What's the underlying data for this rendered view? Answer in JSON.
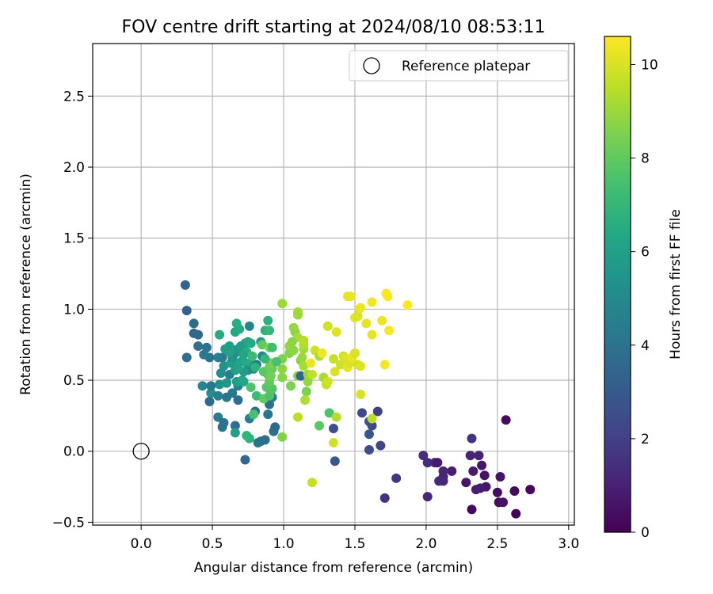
{
  "chart_data": {
    "type": "scatter",
    "title": "FOV centre drift starting at 2024/08/10 08:53:11",
    "xlabel": "Angular distance from reference (arcmin)",
    "ylabel": "Rotation from reference (arcmin)",
    "xlim": [
      -0.34,
      3.04
    ],
    "ylim": [
      -0.52,
      2.87
    ],
    "xticks": [
      "0.0",
      "0.5",
      "1.0",
      "1.5",
      "2.0",
      "2.5",
      "3.0"
    ],
    "yticks": [
      "−0.5",
      "0.0",
      "0.5",
      "1.0",
      "1.5",
      "2.0",
      "2.5"
    ],
    "grid": true,
    "legend": {
      "placement": "top-right",
      "entries": [
        "Reference platepar"
      ]
    },
    "colorbar": {
      "label": "Hours from first FF file",
      "colormap": "viridis",
      "range": [
        0,
        10.6
      ],
      "ticks": [
        "0",
        "2",
        "4",
        "6",
        "8",
        "10"
      ]
    },
    "reference": {
      "x": 0.0,
      "y": 0.0,
      "marker": "open-circle"
    },
    "points": [
      [
        2.56,
        0.22,
        0.3
      ],
      [
        2.32,
        0.09,
        1.6
      ],
      [
        2.63,
        -0.44,
        0.1
      ],
      [
        2.32,
        -0.41,
        0.3
      ],
      [
        2.73,
        -0.27,
        0.2
      ],
      [
        2.62,
        -0.28,
        0.3
      ],
      [
        2.5,
        -0.29,
        0.4
      ],
      [
        2.51,
        -0.36,
        0.3
      ],
      [
        2.54,
        -0.36,
        0.5
      ],
      [
        2.52,
        -0.18,
        0.6
      ],
      [
        2.42,
        -0.25,
        0.7
      ],
      [
        2.38,
        -0.26,
        0.8
      ],
      [
        2.35,
        -0.27,
        0.9
      ],
      [
        2.41,
        -0.17,
        0.5
      ],
      [
        2.39,
        -0.1,
        0.7
      ],
      [
        2.33,
        -0.14,
        0.8
      ],
      [
        2.37,
        -0.03,
        1.0
      ],
      [
        2.31,
        -0.03,
        1.1
      ],
      [
        2.28,
        -0.22,
        0.6
      ],
      [
        2.18,
        -0.14,
        0.9
      ],
      [
        2.12,
        -0.18,
        1.0
      ],
      [
        2.12,
        -0.21,
        1.2
      ],
      [
        2.09,
        -0.21,
        1.3
      ],
      [
        2.12,
        -0.14,
        1.1
      ],
      [
        2.06,
        -0.08,
        1.2
      ],
      [
        2.08,
        -0.08,
        0.8
      ],
      [
        2.01,
        -0.08,
        1.3
      ],
      [
        1.98,
        -0.03,
        1.4
      ],
      [
        2.01,
        -0.32,
        1.2
      ],
      [
        1.71,
        -0.33,
        1.6
      ],
      [
        1.79,
        -0.19,
        1.7
      ],
      [
        1.66,
        0.28,
        2.0
      ],
      [
        1.68,
        0.04,
        2.2
      ],
      [
        1.6,
        0.01,
        2.5
      ],
      [
        1.55,
        0.27,
        2.4
      ],
      [
        1.62,
        0.18,
        2.3
      ],
      [
        1.6,
        0.21,
        2.6
      ],
      [
        1.6,
        0.12,
        2.8
      ],
      [
        1.36,
        -0.07,
        2.9
      ],
      [
        1.35,
        0.16,
        2.6
      ],
      [
        0.31,
        1.17,
        3.4
      ],
      [
        0.32,
        0.99,
        3.3
      ],
      [
        0.37,
        0.9,
        3.7
      ],
      [
        0.37,
        0.83,
        3.5
      ],
      [
        0.4,
        0.82,
        3.6
      ],
      [
        0.4,
        0.74,
        3.9
      ],
      [
        0.46,
        0.73,
        4.0
      ],
      [
        0.44,
        0.68,
        4.2
      ],
      [
        0.48,
        0.66,
        4.1
      ],
      [
        0.32,
        0.66,
        3.8
      ],
      [
        0.54,
        0.66,
        4.6
      ],
      [
        0.57,
        0.66,
        4.4
      ],
      [
        0.43,
        0.46,
        4.8
      ],
      [
        0.49,
        0.41,
        5.2
      ],
      [
        0.48,
        0.35,
        3.6
      ],
      [
        0.54,
        0.39,
        4.6
      ],
      [
        0.49,
        0.46,
        4.3
      ],
      [
        0.54,
        0.24,
        4.4
      ],
      [
        0.58,
        0.2,
        3.9
      ],
      [
        0.66,
        0.18,
        3.8
      ],
      [
        0.57,
        0.17,
        4.0
      ],
      [
        0.6,
        0.38,
        4.2
      ],
      [
        0.64,
        0.41,
        4.3
      ],
      [
        0.68,
        0.36,
        3.8
      ],
      [
        0.73,
        -0.06,
        3.5
      ],
      [
        0.68,
        0.46,
        4.6
      ],
      [
        0.62,
        0.54,
        4.5
      ],
      [
        0.6,
        0.48,
        4.4
      ],
      [
        0.56,
        0.55,
        5.1
      ],
      [
        0.55,
        0.47,
        5.3
      ],
      [
        0.6,
        0.48,
        5.6
      ],
      [
        0.67,
        0.49,
        5.9
      ],
      [
        0.71,
        0.5,
        6.1
      ],
      [
        0.72,
        0.49,
        6.3
      ],
      [
        0.66,
        0.57,
        5.7
      ],
      [
        0.58,
        0.6,
        5.4
      ],
      [
        0.63,
        0.62,
        5.9
      ],
      [
        0.68,
        0.62,
        6.0
      ],
      [
        0.7,
        0.63,
        6.2
      ],
      [
        0.74,
        0.62,
        6.4
      ],
      [
        0.77,
        0.61,
        6.5
      ],
      [
        0.79,
        0.6,
        5.6
      ],
      [
        0.75,
        0.57,
        5.4
      ],
      [
        0.72,
        0.56,
        5.8
      ],
      [
        0.68,
        0.58,
        6.1
      ],
      [
        0.64,
        0.66,
        5.5
      ],
      [
        0.66,
        0.69,
        5.3
      ],
      [
        0.68,
        0.72,
        5.6
      ],
      [
        0.7,
        0.74,
        5.8
      ],
      [
        0.73,
        0.76,
        5.9
      ],
      [
        0.75,
        0.77,
        6.2
      ],
      [
        0.77,
        0.76,
        6.4
      ],
      [
        0.74,
        0.7,
        6.6
      ],
      [
        0.72,
        0.68,
        6.3
      ],
      [
        0.62,
        0.7,
        6.1
      ],
      [
        0.59,
        0.72,
        6.0
      ],
      [
        0.62,
        0.74,
        5.9
      ],
      [
        0.66,
        0.84,
        6.3
      ],
      [
        0.69,
        0.86,
        6.5
      ],
      [
        0.67,
        0.9,
        6.6
      ],
      [
        0.76,
        0.88,
        4.7
      ],
      [
        0.55,
        0.82,
        6.5
      ],
      [
        0.66,
        0.13,
        6.0
      ],
      [
        0.76,
        0.09,
        6.7
      ],
      [
        0.74,
        0.11,
        6.9
      ],
      [
        0.76,
        0.23,
        4.6
      ],
      [
        0.8,
        0.28,
        3.6
      ],
      [
        0.82,
        0.06,
        4.1
      ],
      [
        0.84,
        0.07,
        3.9
      ],
      [
        0.87,
        0.08,
        4.0
      ],
      [
        0.89,
        0.26,
        4.3
      ],
      [
        0.92,
        0.38,
        4.5
      ],
      [
        0.93,
        0.14,
        3.9
      ],
      [
        0.94,
        0.17,
        3.6
      ],
      [
        0.9,
        0.33,
        4.0
      ],
      [
        0.77,
        0.45,
        7.6
      ],
      [
        0.81,
        0.39,
        7.2
      ],
      [
        0.79,
        0.26,
        7.5
      ],
      [
        0.79,
        0.58,
        4.5
      ],
      [
        0.81,
        0.61,
        4.3
      ],
      [
        0.85,
        0.67,
        4.7
      ],
      [
        0.86,
        0.66,
        5.1
      ],
      [
        0.84,
        0.77,
        5.6
      ],
      [
        0.87,
        0.85,
        6.8
      ],
      [
        0.89,
        0.92,
        6.7
      ],
      [
        0.9,
        0.85,
        7.0
      ],
      [
        0.85,
        0.75,
        8.0
      ],
      [
        0.86,
        0.56,
        7.8
      ],
      [
        0.89,
        0.54,
        7.9
      ],
      [
        0.86,
        0.37,
        8.0
      ],
      [
        0.9,
        0.39,
        7.6
      ],
      [
        0.92,
        0.44,
        7.7
      ],
      [
        0.88,
        0.45,
        7.9
      ],
      [
        0.9,
        0.49,
        8.0
      ],
      [
        0.92,
        0.58,
        8.1
      ],
      [
        0.9,
        0.59,
        8.2
      ],
      [
        0.91,
        0.53,
        8.3
      ],
      [
        0.91,
        0.62,
        8.4
      ],
      [
        0.9,
        0.73,
        8.5
      ],
      [
        0.99,
        0.1,
        8.6
      ],
      [
        0.99,
        0.52,
        8.7
      ],
      [
        0.99,
        0.58,
        8.8
      ],
      [
        0.99,
        0.65,
        8.5
      ],
      [
        1.04,
        0.69,
        8.6
      ],
      [
        1.04,
        0.74,
        8.9
      ],
      [
        1.07,
        0.71,
        8.8
      ],
      [
        1.08,
        0.84,
        8.7
      ],
      [
        1.07,
        0.87,
        8.9
      ],
      [
        1.1,
        0.96,
        9.0
      ],
      [
        1.1,
        0.98,
        9.1
      ],
      [
        1.1,
        0.8,
        9.2
      ],
      [
        1.06,
        0.77,
        8.8
      ],
      [
        1.05,
        0.46,
        8.5
      ],
      [
        1.1,
        0.53,
        8.7
      ],
      [
        1.12,
        0.53,
        3.3
      ],
      [
        1.12,
        0.64,
        8.6
      ],
      [
        1.13,
        0.66,
        9.0
      ],
      [
        1.14,
        0.72,
        9.1
      ],
      [
        1.14,
        0.75,
        9.3
      ],
      [
        1.14,
        0.78,
        9.4
      ],
      [
        1.14,
        0.6,
        9.2
      ],
      [
        1.17,
        0.54,
        9.0
      ],
      [
        1.17,
        0.49,
        8.9
      ],
      [
        1.16,
        0.42,
        8.5
      ],
      [
        1.15,
        0.36,
        9.3
      ],
      [
        1.1,
        0.24,
        9.5
      ],
      [
        1.2,
        0.54,
        9.6
      ],
      [
        1.2,
        -0.22,
        9.7
      ],
      [
        1.22,
        0.71,
        9.8
      ],
      [
        1.25,
        0.67,
        9.3
      ],
      [
        1.25,
        0.18,
        7.9
      ],
      [
        1.28,
        0.52,
        9.2
      ],
      [
        1.3,
        0.47,
        9.6
      ],
      [
        1.31,
        0.49,
        9.8
      ],
      [
        1.32,
        0.27,
        7.6
      ],
      [
        1.31,
        0.88,
        9.8
      ],
      [
        1.35,
        0.06,
        9.9
      ],
      [
        1.35,
        0.65,
        9.7
      ],
      [
        1.36,
        0.56,
        10.0
      ],
      [
        1.37,
        0.24,
        9.4
      ],
      [
        1.37,
        0.84,
        10.1
      ],
      [
        1.4,
        0.61,
        9.8
      ],
      [
        1.42,
        0.67,
        9.9
      ],
      [
        1.44,
        0.65,
        10.1
      ],
      [
        1.45,
        0.59,
        10.2
      ],
      [
        1.46,
        0.62,
        10.0
      ],
      [
        1.48,
        0.66,
        10.3
      ],
      [
        1.45,
        1.09,
        10.2
      ],
      [
        1.47,
        1.09,
        10.3
      ],
      [
        1.5,
        0.94,
        10.2
      ],
      [
        1.52,
        0.95,
        10.0
      ],
      [
        1.53,
        1.0,
        10.1
      ],
      [
        1.54,
        1.01,
        10.3
      ],
      [
        1.5,
        0.69,
        10.0
      ],
      [
        1.52,
        0.61,
        9.9
      ],
      [
        1.54,
        0.6,
        10.1
      ],
      [
        1.54,
        0.4,
        10.0
      ],
      [
        1.58,
        0.9,
        10.2
      ],
      [
        1.62,
        1.05,
        10.4
      ],
      [
        1.62,
        0.82,
        10.2
      ],
      [
        1.62,
        0.23,
        9.5
      ],
      [
        1.69,
        0.92,
        10.3
      ],
      [
        1.71,
        0.61,
        10.5
      ],
      [
        1.72,
        1.11,
        10.5
      ],
      [
        1.73,
        1.09,
        10.6
      ],
      [
        1.74,
        0.85,
        10.5
      ],
      [
        1.87,
        1.03,
        10.6
      ],
      [
        1.27,
        0.69,
        10.4
      ],
      [
        1.19,
        0.62,
        10.3
      ],
      [
        0.99,
        1.04,
        9.0
      ],
      [
        0.95,
        0.63,
        7.5
      ],
      [
        0.92,
        0.73,
        7.3
      ],
      [
        0.87,
        0.65,
        7.0
      ],
      [
        0.8,
        0.59,
        6.8
      ],
      [
        0.78,
        0.67,
        7.2
      ]
    ]
  }
}
